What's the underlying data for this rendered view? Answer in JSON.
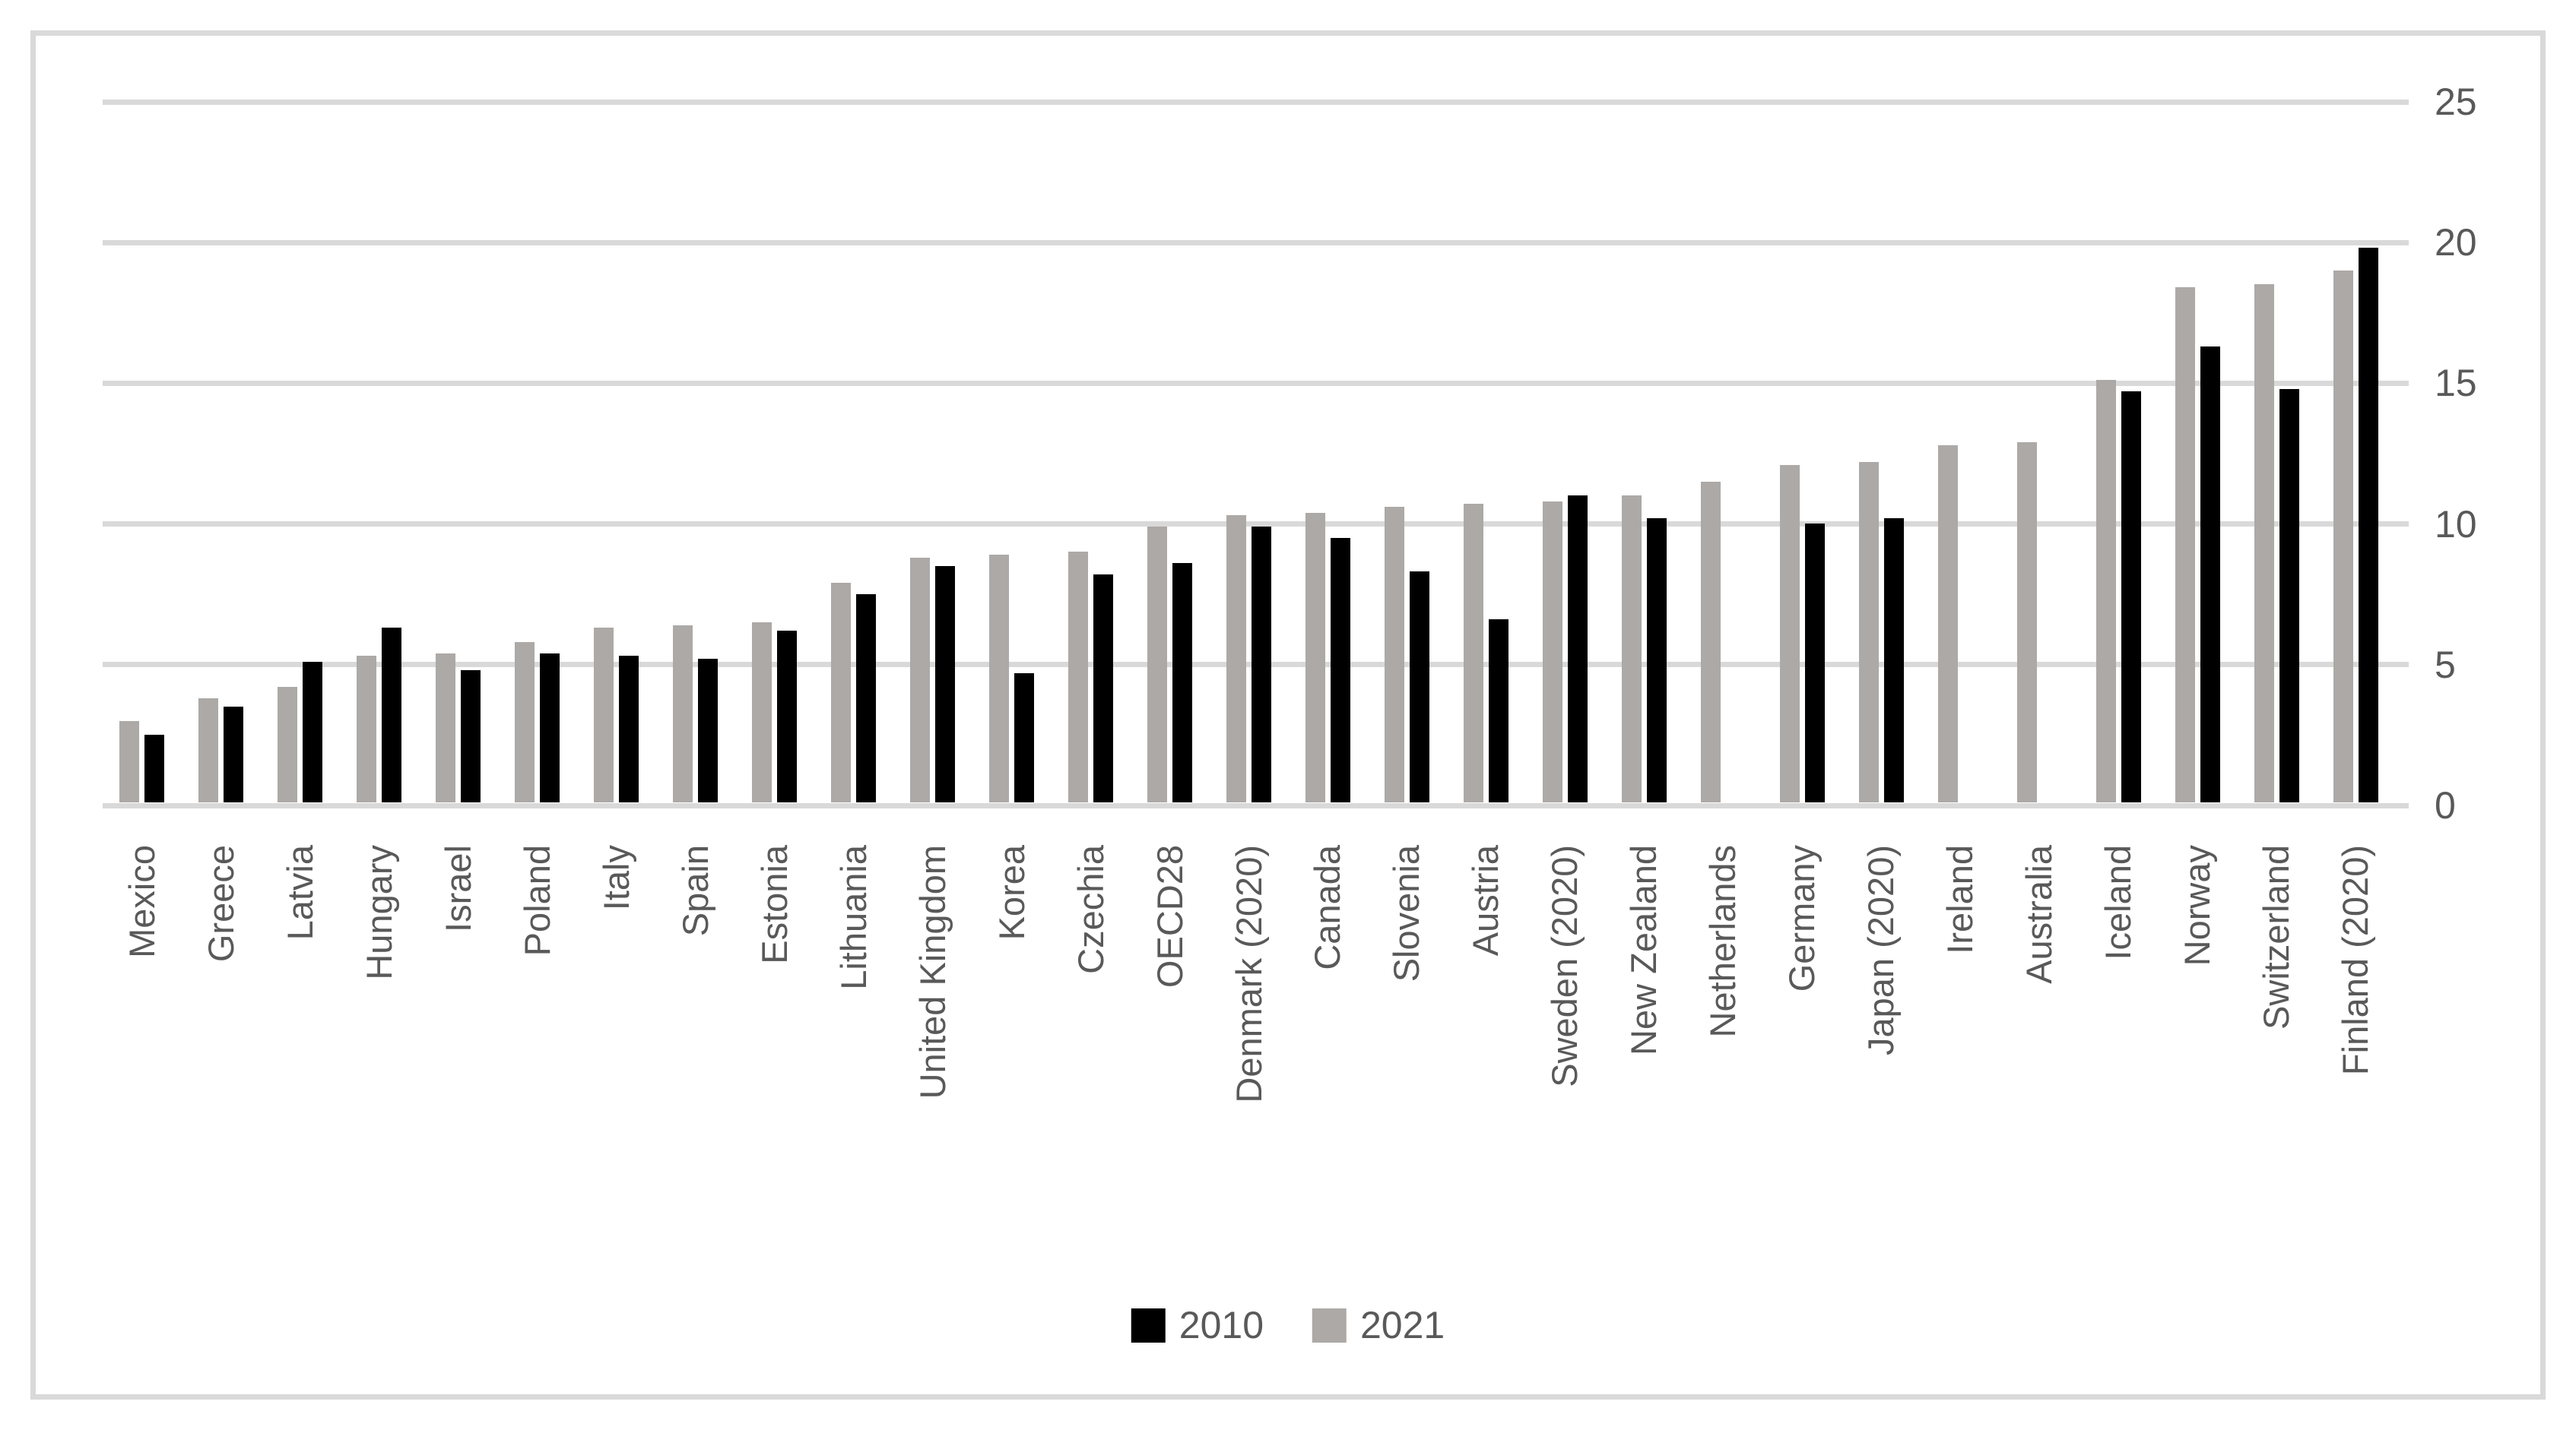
{
  "figure": {
    "background": "#ffffff",
    "border_color": "#d9d9d9"
  },
  "legend": {
    "position": "bottom-center",
    "items": [
      {
        "label": "2010",
        "color": "#000000"
      },
      {
        "label": "2021",
        "color": "#ACA9A6"
      }
    ]
  },
  "chart_data": {
    "type": "bar",
    "title": "",
    "xlabel": "",
    "ylabel": "",
    "categories": [
      "Mexico",
      "Greece",
      "Latvia",
      "Hungary",
      "Israel",
      "Poland",
      "Italy",
      "Spain",
      "Estonia",
      "Lithuania",
      "United Kingdom",
      "Korea",
      "Czechia",
      "OECD28",
      "Denmark (2020)",
      "Canada",
      "Slovenia",
      "Austria",
      "Sweden (2020)",
      "New Zealand",
      "Netherlands",
      "Germany",
      "Japan (2020)",
      "Ireland",
      "Australia",
      "Iceland",
      "Norway",
      "Switzerland",
      "Finland (2020)"
    ],
    "series": [
      {
        "name": "2010",
        "color": "#000000",
        "values": [
          2.4,
          3.4,
          5.0,
          6.2,
          4.7,
          5.3,
          5.2,
          5.1,
          6.1,
          7.4,
          8.4,
          4.6,
          8.1,
          8.5,
          9.8,
          9.4,
          8.2,
          6.5,
          10.9,
          10.1,
          null,
          9.9,
          10.1,
          null,
          null,
          14.6,
          16.2,
          14.7,
          19.7
        ]
      },
      {
        "name": "2021",
        "color": "#ACA9A6",
        "values": [
          2.9,
          3.7,
          4.1,
          5.2,
          5.3,
          5.7,
          6.2,
          6.3,
          6.4,
          7.8,
          8.7,
          8.8,
          8.9,
          9.8,
          10.2,
          10.3,
          10.5,
          10.6,
          10.7,
          10.9,
          11.4,
          12.0,
          12.1,
          12.7,
          12.8,
          15.0,
          18.3,
          18.4,
          18.9
        ]
      }
    ],
    "bar_order": [
      "2021",
      "2010"
    ],
    "ylim": [
      0,
      25
    ],
    "yticks": [
      0,
      5,
      10,
      15,
      20,
      25
    ],
    "grid": "horizontal",
    "gridline_color": "#d9d9d9",
    "tick_color": "#d9d9d9",
    "text_color": "#595959",
    "legend_position": "bottom"
  }
}
